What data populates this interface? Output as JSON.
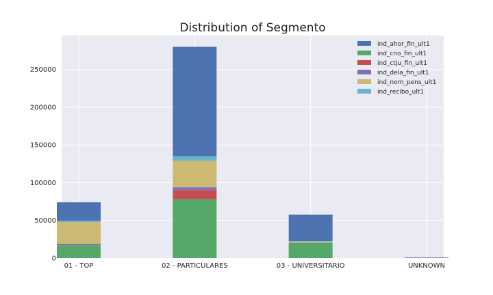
{
  "chart_data": {
    "type": "bar",
    "stacked": true,
    "title": "Distribution of Segmento",
    "xlabel": "",
    "ylabel": "",
    "categories": [
      "01 - TOP",
      "02 - PARTICULARES",
      "03 - UNIVERSITARIO",
      "UNKNOWN"
    ],
    "ylim": [
      0,
      295000
    ],
    "yticks": [
      0,
      50000,
      100000,
      150000,
      200000,
      250000
    ],
    "grid": true,
    "legend_position": "top-right",
    "series": [
      {
        "name": "ind_cno_fin_ult1",
        "color": "#55a868",
        "values": [
          17000,
          78000,
          20000,
          0
        ]
      },
      {
        "name": "ind_ctju_fin_ult1",
        "color": "#c44e52",
        "values": [
          0,
          12000,
          0,
          0
        ]
      },
      {
        "name": "ind_dela_fin_ult1",
        "color": "#8172b2",
        "values": [
          2000,
          4000,
          500,
          1000
        ]
      },
      {
        "name": "ind_nom_pens_ult1",
        "color": "#ccb974",
        "values": [
          29000,
          35000,
          1500,
          0
        ]
      },
      {
        "name": "ind_recibo_ult1",
        "color": "#64b5cd",
        "values": [
          1500,
          6000,
          500,
          0
        ]
      },
      {
        "name": "ind_ahor_fin_ult1",
        "color": "#4c72b0",
        "values": [
          24500,
          145000,
          35000,
          0
        ]
      }
    ],
    "legend_order": [
      "ind_ahor_fin_ult1",
      "ind_cno_fin_ult1",
      "ind_ctju_fin_ult1",
      "ind_dela_fin_ult1",
      "ind_nom_pens_ult1",
      "ind_recibo_ult1"
    ]
  }
}
